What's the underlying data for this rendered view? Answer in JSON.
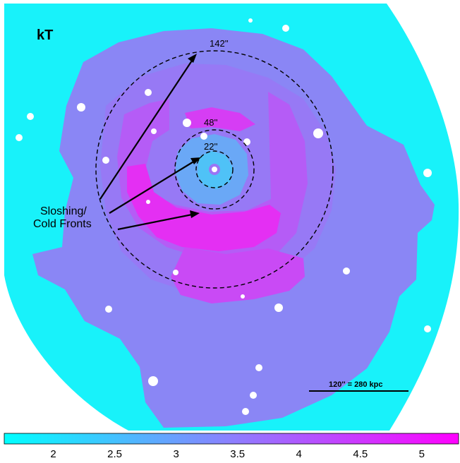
{
  "panel_label": "kT",
  "regions": [
    {
      "label": "142''"
    },
    {
      "label": "48''"
    },
    {
      "label": "22''"
    }
  ],
  "annotation": {
    "line1": "Sloshing/",
    "line2": "Cold Fronts"
  },
  "scale_bar": {
    "label": "120'' = 280 kpc"
  },
  "colorbar": {
    "min": 1.6,
    "max": 5.3,
    "ticks": [
      "2",
      "2.5",
      "3",
      "3.5",
      "4",
      "4.5",
      "5"
    ],
    "tick_values": [
      2,
      2.5,
      3,
      3.5,
      4,
      4.5,
      5
    ],
    "color_low": "#00ffff",
    "color_mid": "#8c7fff",
    "color_high": "#ff00ff"
  },
  "colors": {
    "cool": "#1ee6fb",
    "background_cool": "#18f2fa",
    "mid": "#8a86f5",
    "warm": "#b55cf6",
    "hot": "#e42ff3",
    "point_sources": "#ffffff"
  }
}
